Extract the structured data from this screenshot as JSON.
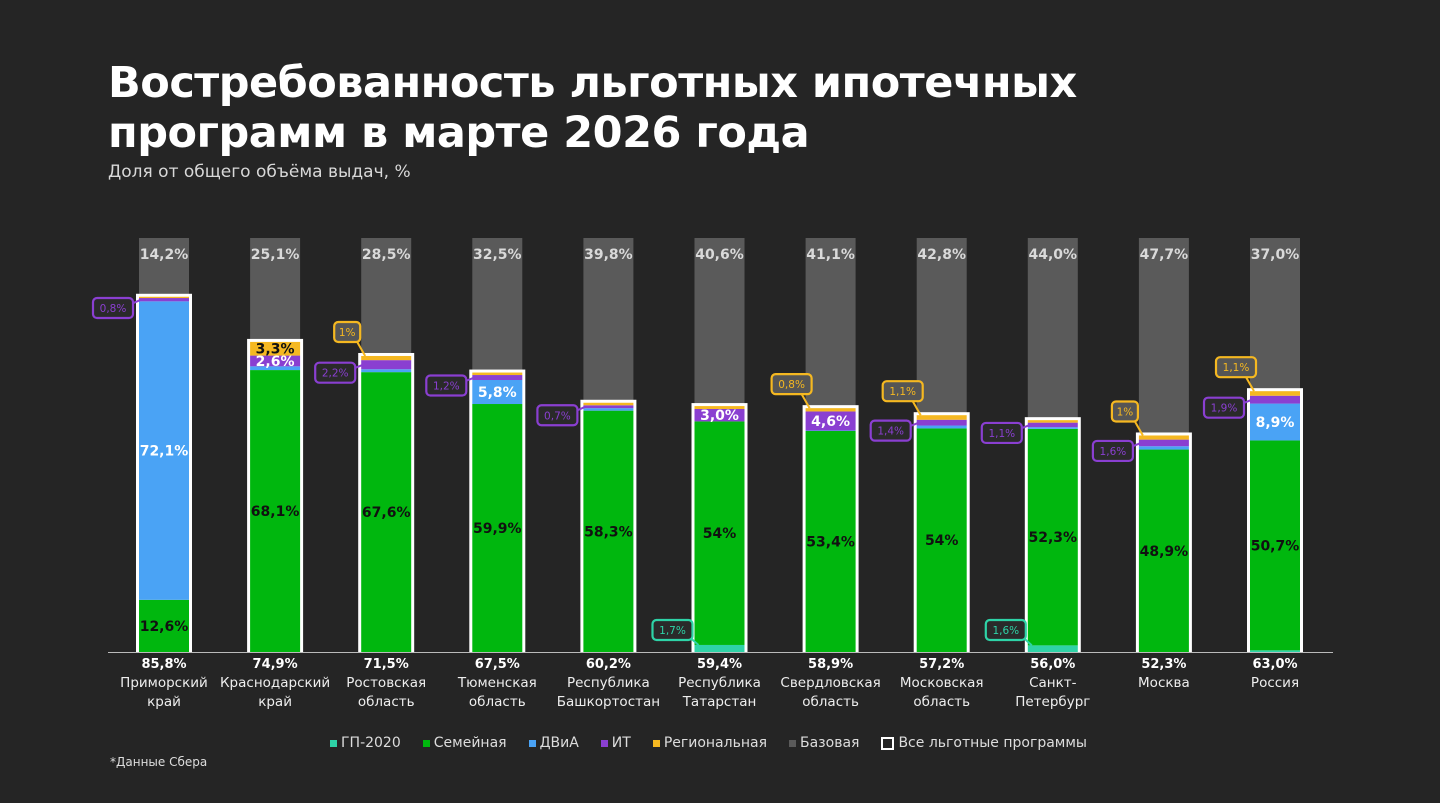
{
  "title_line1": "Востребованность льготных ипотечных",
  "title_line2": "программ в марте 2026 года",
  "subtitle": "Доля от общего объёма выдач, %",
  "note": "*Данные Сбера",
  "colors": {
    "background": "#252525",
    "gp2020": "#2ed3a7",
    "family": "#00b70e",
    "dvia": "#4aa3f5",
    "it": "#8a3fd1",
    "regional": "#f5b821",
    "base": "#5a5a5a",
    "all": "#ffffff"
  },
  "legend": [
    {
      "key": "gp2020",
      "label": "ГП-2020"
    },
    {
      "key": "family",
      "label": "Семейная"
    },
    {
      "key": "dvia",
      "label": "ДВиА"
    },
    {
      "key": "it",
      "label": "ИТ"
    },
    {
      "key": "regional",
      "label": "Региональная"
    },
    {
      "key": "base",
      "label": "Базовая"
    },
    {
      "key": "all",
      "label": "Все льготные программы"
    }
  ],
  "chart_data": {
    "type": "bar",
    "stacked": true,
    "ylim": [
      0,
      100
    ],
    "unit": "%",
    "categories": [
      [
        "Приморский",
        "край"
      ],
      [
        "Краснодарский",
        "край"
      ],
      [
        "Ростовская",
        "область"
      ],
      [
        "Тюменская",
        "область"
      ],
      [
        "Республика",
        "Башкортостан"
      ],
      [
        "Республика",
        "Татарстан"
      ],
      [
        "Свердловская",
        "область"
      ],
      [
        "Московская",
        "область"
      ],
      [
        "Санкт-",
        "Петербург"
      ],
      [
        "Москва",
        ""
      ],
      [
        "Россия",
        ""
      ]
    ],
    "totals_labels": [
      "85,8%",
      "74,9%",
      "71,5%",
      "67,5%",
      "60,2%",
      "59,4%",
      "58,9%",
      "57,2%",
      "56,0%",
      "52,3%",
      "63,0%"
    ],
    "totals": [
      85.8,
      74.9,
      71.5,
      67.5,
      60.2,
      59.4,
      58.9,
      57.2,
      56.0,
      52.3,
      63.0
    ],
    "base_labels": [
      "14,2%",
      "25,1%",
      "28,5%",
      "32,5%",
      "39,8%",
      "40,6%",
      "41,1%",
      "42,8%",
      "44,0%",
      "47,7%",
      "37,0%"
    ],
    "base": [
      14.2,
      25.1,
      28.5,
      32.5,
      39.8,
      40.6,
      41.1,
      42.8,
      44.0,
      47.7,
      37.0
    ],
    "series": [
      {
        "key": "gp2020",
        "name": "ГП-2020",
        "values": [
          0,
          0,
          0,
          0,
          0,
          1.7,
          0,
          0,
          1.6,
          0,
          0.4
        ],
        "labels": [
          "",
          "",
          "",
          "",
          "",
          "1,7%",
          "",
          "",
          "1,6%",
          "",
          ""
        ]
      },
      {
        "key": "family",
        "name": "Семейная",
        "values": [
          12.6,
          68.1,
          67.6,
          59.9,
          58.3,
          54,
          53.4,
          54,
          52.3,
          48.9,
          50.7
        ],
        "labels": [
          "12,6%",
          "68,1%",
          "67,6%",
          "59,9%",
          "58,3%",
          "54%",
          "53,4%",
          "54%",
          "52,3%",
          "48,9%",
          "50,7%"
        ]
      },
      {
        "key": "dvia",
        "name": "ДВиА",
        "values": [
          72.1,
          0.9,
          0.7,
          5.8,
          0.6,
          0,
          0.1,
          0.7,
          0.4,
          0.8,
          8.9
        ],
        "labels": [
          "72,1%",
          "",
          "",
          "5,8%",
          "",
          "",
          "",
          "",
          "",
          "",
          "8,9%"
        ]
      },
      {
        "key": "it",
        "name": "ИТ",
        "values": [
          0.8,
          2.6,
          2.2,
          1.2,
          0.7,
          3.0,
          4.6,
          1.4,
          1.1,
          1.6,
          1.9
        ],
        "labels": [
          "0,8%",
          "2,6%",
          "2,2%",
          "1,2%",
          "0,7%",
          "3,0%",
          "4,6%",
          "1,4%",
          "1,1%",
          "1,6%",
          "1,9%"
        ]
      },
      {
        "key": "regional",
        "name": "Региональная",
        "values": [
          0.3,
          3.3,
          1,
          0.6,
          0.6,
          0.7,
          0.8,
          1.1,
          0.6,
          1,
          1.1
        ],
        "labels": [
          "",
          "3,3%",
          "1%",
          "",
          "",
          "",
          "0,8%",
          "1,1%",
          "",
          "1%",
          "1,1%"
        ]
      }
    ]
  }
}
